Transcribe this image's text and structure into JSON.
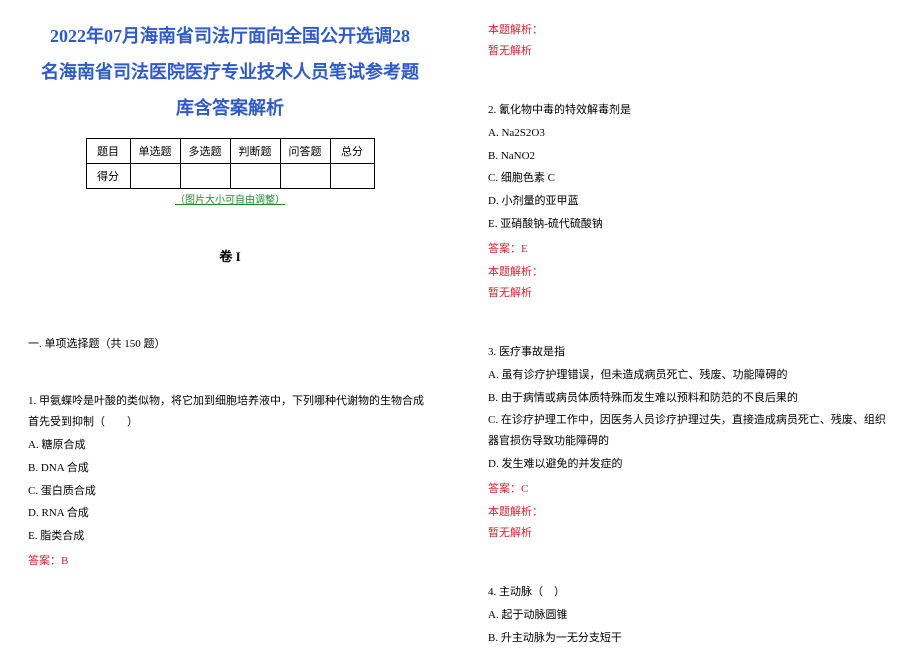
{
  "title_lines": [
    "2022年07月海南省司法厅面向全国公开选调28",
    "名海南省司法医院医疗专业技术人员笔试参考题",
    "库含答案解析"
  ],
  "score_table": {
    "header": [
      "题目",
      "单选题",
      "多选题",
      "判断题",
      "问答题",
      "总分"
    ],
    "row_label": "得分"
  },
  "img_note": "（图片大小可自由调整）",
  "juan_label": "卷 I",
  "section_heading": "一. 单项选择题（共 150 题）",
  "q1": {
    "stem": "1. 甲氨蝶呤是叶酸的类似物，将它加到细胞培养液中，下列哪种代谢物的生物合成首先受到抑制（　　）",
    "opts": [
      "A. 糖原合成",
      "B. DNA 合成",
      "C. 蛋白质合成",
      "D. RNA 合成",
      "E. 脂类合成"
    ],
    "answer": "答案：B"
  },
  "jiexi_head": "本题解析：",
  "jiexi_body": "暂无解析",
  "q2": {
    "stem": "2. 氰化物中毒的特效解毒剂是",
    "opts": [
      "A. Na2S2O3",
      "B. NaNO2",
      "C. 细胞色素 C",
      "D. 小剂量的亚甲蓝",
      "E. 亚硝酸钠-硫代硫酸钠"
    ],
    "answer": "答案：E"
  },
  "q3": {
    "stem": "3. 医疗事故是指",
    "opts": [
      "A. 虽有诊疗护理错误，但未造成病员死亡、残废、功能障碍的",
      "B. 由于病情或病员体质特殊而发生难以预料和防范的不良后果的",
      "C. 在诊疗护理工作中，因医务人员诊疗护理过失，直接造成病员死亡、残废、组织器官损伤导致功能障碍的",
      "D. 发生难以避免的并发症的"
    ],
    "answer": "答案：C"
  },
  "q4": {
    "stem": "4. 主动脉（　）",
    "opts": [
      "A. 起于动脉圆锥",
      "B. 升主动脉为一无分支短干"
    ]
  },
  "colors": {
    "title": "#2e5bc9",
    "green": "#1f8a36",
    "red": "#d23",
    "text": "#000000",
    "bg": "#ffffff"
  }
}
